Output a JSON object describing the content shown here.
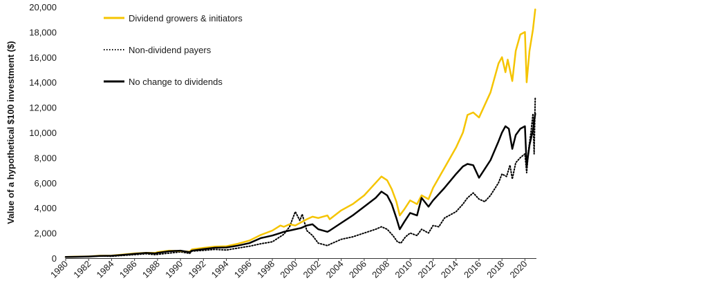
{
  "chart_data": {
    "type": "line",
    "title": "",
    "xlabel": "",
    "ylabel": "Value of a hypothetical $100 investment ($)",
    "xlim": [
      1980,
      2021
    ],
    "ylim": [
      0,
      20000
    ],
    "y_ticks": [
      0,
      2000,
      4000,
      6000,
      8000,
      10000,
      12000,
      14000,
      16000,
      18000,
      20000
    ],
    "y_tick_labels": [
      "0",
      "2,000",
      "4,000",
      "6,000",
      "8,000",
      "10,000",
      "12,000",
      "14,000",
      "16,000",
      "18,000",
      "20,000"
    ],
    "x_ticks": [
      1980,
      1982,
      1984,
      1986,
      1988,
      1990,
      1992,
      1994,
      1996,
      1998,
      2000,
      2002,
      2004,
      2006,
      2008,
      2010,
      2012,
      2014,
      2016,
      2018,
      2020
    ],
    "x_tick_labels": [
      "1980",
      "1982",
      "1984",
      "1986",
      "1988",
      "1990",
      "1992",
      "1994",
      "1996",
      "1998",
      "2000",
      "2002",
      "2004",
      "2006",
      "2008",
      "2010",
      "2012",
      "2014",
      "2016",
      "2018",
      "2020"
    ],
    "grid": false,
    "legend": "top-left",
    "series": [
      {
        "name": "Dividend growers & initiators",
        "color": "#f5c400",
        "style": "solid",
        "points": [
          [
            1980,
            100
          ],
          [
            1981,
            120
          ],
          [
            1982,
            140
          ],
          [
            1983,
            200
          ],
          [
            1984,
            210
          ],
          [
            1985,
            290
          ],
          [
            1986,
            380
          ],
          [
            1987,
            430
          ],
          [
            1987.8,
            420
          ],
          [
            1988,
            480
          ],
          [
            1989,
            600
          ],
          [
            1990,
            560
          ],
          [
            1990.8,
            520
          ],
          [
            1991,
            700
          ],
          [
            1992,
            820
          ],
          [
            1993,
            920
          ],
          [
            1994,
            950
          ],
          [
            1995,
            1150
          ],
          [
            1996,
            1400
          ],
          [
            1997,
            1850
          ],
          [
            1998,
            2200
          ],
          [
            1998.7,
            2600
          ],
          [
            1999,
            2500
          ],
          [
            1999.5,
            2700
          ],
          [
            2000,
            2600
          ],
          [
            2000.6,
            2900
          ],
          [
            2001,
            3100
          ],
          [
            2001.5,
            3300
          ],
          [
            2002,
            3200
          ],
          [
            2002.8,
            3400
          ],
          [
            2003,
            3100
          ],
          [
            2004,
            3800
          ],
          [
            2005,
            4300
          ],
          [
            2006,
            5000
          ],
          [
            2007,
            6000
          ],
          [
            2007.5,
            6500
          ],
          [
            2008,
            6200
          ],
          [
            2008.4,
            5500
          ],
          [
            2008.8,
            4500
          ],
          [
            2009.1,
            3400
          ],
          [
            2009.5,
            3900
          ],
          [
            2010,
            4600
          ],
          [
            2010.6,
            4300
          ],
          [
            2011,
            5000
          ],
          [
            2011.6,
            4700
          ],
          [
            2012,
            5600
          ],
          [
            2013,
            7200
          ],
          [
            2014,
            8800
          ],
          [
            2014.6,
            10000
          ],
          [
            2015,
            11400
          ],
          [
            2015.5,
            11600
          ],
          [
            2016,
            11200
          ],
          [
            2017,
            13200
          ],
          [
            2017.7,
            15500
          ],
          [
            2018,
            16000
          ],
          [
            2018.3,
            14800
          ],
          [
            2018.5,
            15800
          ],
          [
            2018.9,
            14100
          ],
          [
            2019.2,
            16500
          ],
          [
            2019.6,
            17800
          ],
          [
            2020,
            18000
          ],
          [
            2020.15,
            14000
          ],
          [
            2020.4,
            16500
          ],
          [
            2020.7,
            18200
          ],
          [
            2020.9,
            19800
          ]
        ]
      },
      {
        "name": "Non-dividend payers",
        "color": "#000000",
        "style": "dotted",
        "points": [
          [
            1980,
            100
          ],
          [
            1981,
            110
          ],
          [
            1982,
            120
          ],
          [
            1983,
            180
          ],
          [
            1984,
            150
          ],
          [
            1985,
            220
          ],
          [
            1986,
            280
          ],
          [
            1987,
            350
          ],
          [
            1987.8,
            280
          ],
          [
            1988,
            300
          ],
          [
            1989,
            400
          ],
          [
            1990,
            500
          ],
          [
            1990.8,
            380
          ],
          [
            1991,
            560
          ],
          [
            1992,
            620
          ],
          [
            1993,
            700
          ],
          [
            1994,
            650
          ],
          [
            1995,
            800
          ],
          [
            1996,
            950
          ],
          [
            1997,
            1150
          ],
          [
            1998,
            1300
          ],
          [
            1999,
            1900
          ],
          [
            1999.5,
            2500
          ],
          [
            2000,
            3700
          ],
          [
            2000.4,
            3000
          ],
          [
            2000.6,
            3500
          ],
          [
            2001,
            2200
          ],
          [
            2001.5,
            1800
          ],
          [
            2002,
            1200
          ],
          [
            2002.8,
            1000
          ],
          [
            2003,
            1100
          ],
          [
            2004,
            1500
          ],
          [
            2005,
            1700
          ],
          [
            2006,
            2000
          ],
          [
            2007,
            2300
          ],
          [
            2007.5,
            2500
          ],
          [
            2008,
            2300
          ],
          [
            2008.5,
            1800
          ],
          [
            2008.9,
            1300
          ],
          [
            2009.2,
            1200
          ],
          [
            2009.6,
            1700
          ],
          [
            2010,
            2000
          ],
          [
            2010.6,
            1800
          ],
          [
            2011,
            2300
          ],
          [
            2011.6,
            2000
          ],
          [
            2012,
            2600
          ],
          [
            2012.5,
            2500
          ],
          [
            2013,
            3200
          ],
          [
            2014,
            3700
          ],
          [
            2014.6,
            4300
          ],
          [
            2015,
            4800
          ],
          [
            2015.5,
            5200
          ],
          [
            2016,
            4700
          ],
          [
            2016.5,
            4500
          ],
          [
            2017,
            5000
          ],
          [
            2017.7,
            6000
          ],
          [
            2018,
            6700
          ],
          [
            2018.4,
            6500
          ],
          [
            2018.7,
            7400
          ],
          [
            2018.9,
            6300
          ],
          [
            2019.2,
            7600
          ],
          [
            2019.6,
            8000
          ],
          [
            2020,
            8300
          ],
          [
            2020.15,
            6800
          ],
          [
            2020.3,
            8500
          ],
          [
            2020.55,
            10200
          ],
          [
            2020.7,
            11500
          ],
          [
            2020.8,
            8300
          ],
          [
            2020.9,
            12800
          ]
        ]
      },
      {
        "name": "No change to dividends",
        "color": "#000000",
        "style": "solid",
        "points": [
          [
            1980,
            100
          ],
          [
            1981,
            110
          ],
          [
            1982,
            130
          ],
          [
            1983,
            180
          ],
          [
            1984,
            190
          ],
          [
            1985,
            260
          ],
          [
            1986,
            340
          ],
          [
            1987,
            420
          ],
          [
            1987.8,
            380
          ],
          [
            1988,
            420
          ],
          [
            1989,
            550
          ],
          [
            1990,
            600
          ],
          [
            1990.8,
            480
          ],
          [
            1991,
            600
          ],
          [
            1992,
            720
          ],
          [
            1993,
            830
          ],
          [
            1994,
            850
          ],
          [
            1995,
            1000
          ],
          [
            1996,
            1200
          ],
          [
            1997,
            1600
          ],
          [
            1998,
            1800
          ],
          [
            1998.7,
            2000
          ],
          [
            1999,
            2100
          ],
          [
            1999.5,
            2200
          ],
          [
            2000,
            2300
          ],
          [
            2000.5,
            2400
          ],
          [
            2001,
            2600
          ],
          [
            2001.5,
            2700
          ],
          [
            2002,
            2300
          ],
          [
            2002.8,
            2100
          ],
          [
            2003,
            2200
          ],
          [
            2004,
            2800
          ],
          [
            2005,
            3400
          ],
          [
            2006,
            4100
          ],
          [
            2007,
            4800
          ],
          [
            2007.5,
            5300
          ],
          [
            2008,
            5000
          ],
          [
            2008.4,
            4300
          ],
          [
            2008.8,
            3200
          ],
          [
            2009.1,
            2300
          ],
          [
            2009.5,
            2900
          ],
          [
            2010,
            3600
          ],
          [
            2010.6,
            3400
          ],
          [
            2011,
            4800
          ],
          [
            2011.6,
            4100
          ],
          [
            2012,
            4600
          ],
          [
            2013,
            5600
          ],
          [
            2014,
            6700
          ],
          [
            2014.6,
            7300
          ],
          [
            2015,
            7500
          ],
          [
            2015.5,
            7400
          ],
          [
            2016,
            6400
          ],
          [
            2017,
            7800
          ],
          [
            2017.7,
            9300
          ],
          [
            2018,
            10000
          ],
          [
            2018.3,
            10500
          ],
          [
            2018.6,
            10300
          ],
          [
            2018.9,
            8700
          ],
          [
            2019.2,
            9800
          ],
          [
            2019.6,
            10300
          ],
          [
            2020,
            10500
          ],
          [
            2020.15,
            7300
          ],
          [
            2020.4,
            9000
          ],
          [
            2020.7,
            10200
          ],
          [
            2020.9,
            11500
          ]
        ]
      }
    ]
  }
}
